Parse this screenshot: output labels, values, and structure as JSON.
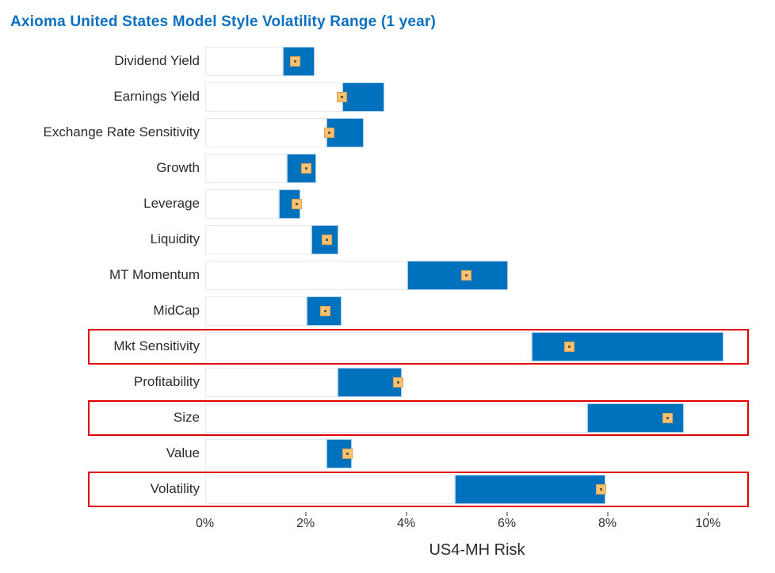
{
  "title": "Axioma United States Model Style Volatility Range (1 year)",
  "colors": {
    "title": "#0a70c0",
    "label_text": "#2b2b2b",
    "bar": "#0071bc",
    "bar_border": "#a9ccea",
    "base_bar_border": "#e4eaf3",
    "marker_fill": "#f6c373",
    "marker_border": "#dfa050",
    "marker_dot": "#6e593a",
    "highlight": "#e20000",
    "axis_text": "#303030"
  },
  "chart_data": {
    "type": "bar",
    "subtype": "horizontal-range-bar-with-marker",
    "title": "Axioma United States Model Style Volatility Range (1 year)",
    "xlabel": "US4-MH Risk",
    "ylabel": "",
    "units": "percent",
    "grid": false,
    "legend": false,
    "xlim": [
      0,
      10.8
    ],
    "x_tick_values": [
      0,
      2,
      4,
      6,
      8,
      10
    ],
    "x_ticks": [
      "0%",
      "2%",
      "4%",
      "6%",
      "8%",
      "10%"
    ],
    "categories": [
      "Dividend Yield",
      "Earnings Yield",
      "Exchange Rate Sensitivity",
      "Growth",
      "Leverage",
      "Liquidity",
      "MT Momentum",
      "MidCap",
      "Mkt Sensitivity",
      "Profitability",
      "Size",
      "Value",
      "Volatility"
    ],
    "series": [
      {
        "name": "range_min_pct",
        "values": [
          1.55,
          2.73,
          2.42,
          1.63,
          1.47,
          2.12,
          4.02,
          2.02,
          6.5,
          2.64,
          7.6,
          2.42,
          4.97
        ]
      },
      {
        "name": "range_max_pct",
        "values": [
          2.18,
          3.57,
          3.16,
          2.21,
          1.9,
          2.65,
          6.02,
          2.72,
          10.31,
          3.91,
          9.52,
          2.92,
          7.96
        ]
      },
      {
        "name": "current_risk_pct",
        "values": [
          1.79,
          2.72,
          2.48,
          2.01,
          1.83,
          2.42,
          5.19,
          2.39,
          7.25,
          3.85,
          9.2,
          2.83,
          7.87
        ]
      }
    ],
    "highlighted_categories": [
      "Mkt Sensitivity",
      "Size",
      "Volatility"
    ]
  }
}
